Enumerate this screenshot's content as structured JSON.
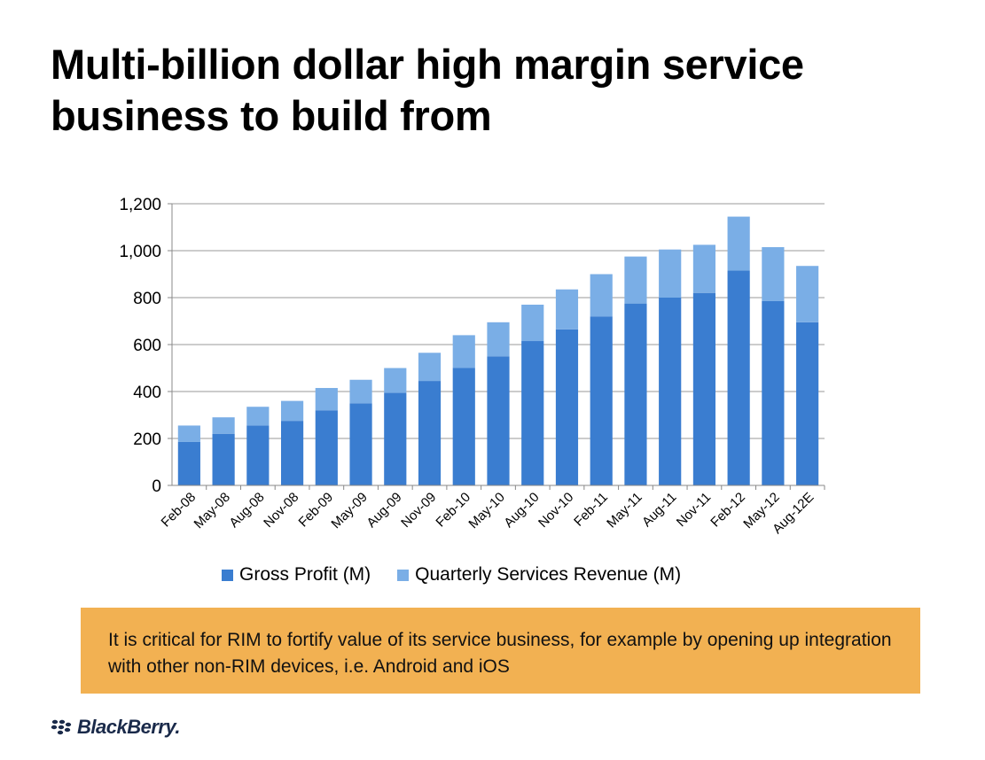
{
  "title": "Multi-billion dollar high margin service business to build from",
  "callout": "It is critical for RIM to fortify value of its service business, for example by opening up integration with other non-RIM devices, i.e. Android and iOS",
  "logo": "BlackBerry.",
  "colors": {
    "gross_profit": "#3a7dd0",
    "services_revenue": "#7aaee6",
    "callout_bg": "#f2b152"
  },
  "chart_data": {
    "type": "bar",
    "stacked": true,
    "categories": [
      "Feb-08",
      "May-08",
      "Aug-08",
      "Nov-08",
      "Feb-09",
      "May-09",
      "Aug-09",
      "Nov-09",
      "Feb-10",
      "May-10",
      "Aug-10",
      "Nov-10",
      "Feb-11",
      "May-11",
      "Aug-11",
      "Nov-11",
      "Feb-12",
      "May-12",
      "Aug-12E"
    ],
    "series": [
      {
        "name": "Gross Profit (M)",
        "values": [
          185,
          220,
          255,
          275,
          320,
          350,
          395,
          445,
          500,
          550,
          615,
          665,
          720,
          775,
          800,
          820,
          915,
          785,
          695
        ]
      },
      {
        "name": "Quarterly Services Revenue (M)",
        "values": [
          70,
          70,
          80,
          85,
          95,
          100,
          105,
          120,
          140,
          145,
          155,
          170,
          180,
          200,
          205,
          205,
          230,
          230,
          240
        ]
      }
    ],
    "ylim": [
      0,
      1200
    ],
    "yticks": [
      0,
      200,
      400,
      600,
      800,
      1000,
      1200
    ],
    "ytick_labels": [
      "0",
      "200",
      "400",
      "600",
      "800",
      "1,000",
      "1,200"
    ],
    "grid": true,
    "legend": "bottom"
  }
}
